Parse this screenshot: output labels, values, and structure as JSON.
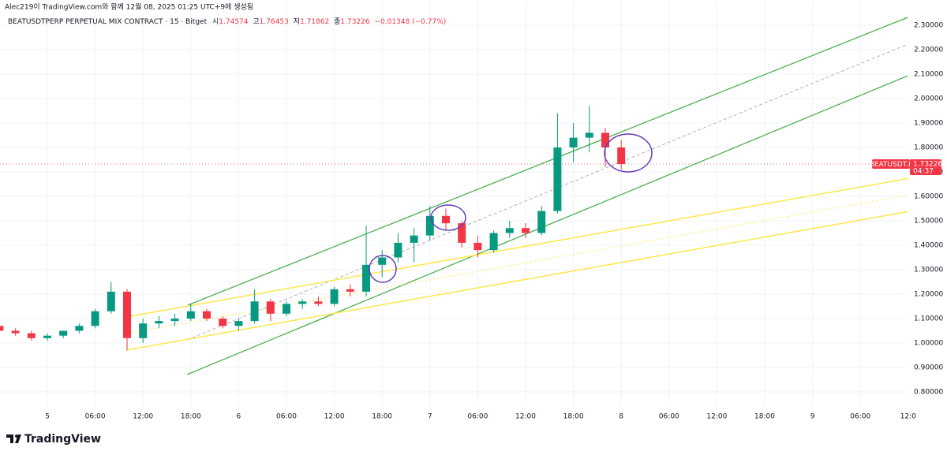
{
  "header": {
    "credit": "Alec219이 TradingView.com와 함께 12월 08, 2025 01:25 UTC+9에 생성됨",
    "symbol": "BEATUSDTPERP PERPETUAL MIX CONTRACT · 15 · Bitget",
    "open_label": "시",
    "open": 1.74574,
    "high_label": "고",
    "high": 1.76453,
    "low_label": "저",
    "low": 1.71862,
    "close_label": "종",
    "change": "−0.01348 (−0.77%)"
  },
  "price_tag": {
    "symbol": "BEATUSDT.P",
    "countdown": "04:37"
  },
  "brand": "TradingView",
  "chart_data": {
    "type": "candlestick",
    "x": [
      -6,
      -4,
      -2,
      0,
      2,
      4,
      6,
      8,
      10,
      12,
      14,
      16,
      18,
      20,
      22,
      24,
      26,
      28,
      30,
      32,
      34,
      36,
      38,
      40,
      42,
      44,
      46,
      48,
      50,
      52,
      54,
      56,
      58,
      60,
      62,
      64,
      66,
      68,
      70,
      72
    ],
    "open": [
      1.07,
      1.05,
      1.04,
      1.02,
      1.03,
      1.05,
      1.07,
      1.13,
      1.21,
      1.02,
      1.08,
      1.09,
      1.1,
      1.13,
      1.1,
      1.07,
      1.09,
      1.17,
      1.12,
      1.16,
      1.17,
      1.16,
      1.22,
      1.21,
      1.32,
      1.35,
      1.41,
      1.44,
      1.52,
      1.49,
      1.41,
      1.38,
      1.45,
      1.47,
      1.45,
      1.54,
      1.8,
      1.84,
      1.86,
      1.8
    ],
    "high": [
      1.08,
      1.06,
      1.05,
      1.04,
      1.05,
      1.08,
      1.14,
      1.25,
      1.22,
      1.1,
      1.11,
      1.12,
      1.16,
      1.14,
      1.11,
      1.1,
      1.22,
      1.18,
      1.17,
      1.18,
      1.19,
      1.23,
      1.24,
      1.48,
      1.38,
      1.45,
      1.47,
      1.56,
      1.55,
      1.5,
      1.44,
      1.46,
      1.5,
      1.49,
      1.56,
      1.94,
      1.9,
      1.97,
      1.88,
      1.83
    ],
    "low": [
      1.04,
      1.03,
      1.01,
      1.01,
      1.02,
      1.04,
      1.06,
      1.12,
      0.97,
      1.0,
      1.06,
      1.07,
      1.09,
      1.09,
      1.06,
      1.05,
      1.08,
      1.09,
      1.11,
      1.14,
      1.15,
      1.15,
      1.19,
      1.19,
      1.27,
      1.33,
      1.33,
      1.42,
      1.46,
      1.39,
      1.35,
      1.37,
      1.43,
      1.43,
      1.44,
      1.53,
      1.74,
      1.78,
      1.72,
      1.71
    ],
    "close": [
      1.05,
      1.04,
      1.02,
      1.03,
      1.05,
      1.07,
      1.13,
      1.21,
      1.02,
      1.08,
      1.09,
      1.1,
      1.13,
      1.1,
      1.07,
      1.09,
      1.17,
      1.12,
      1.16,
      1.17,
      1.16,
      1.22,
      1.21,
      1.32,
      1.35,
      1.41,
      1.44,
      1.52,
      1.49,
      1.41,
      1.38,
      1.45,
      1.47,
      1.45,
      1.54,
      1.8,
      1.84,
      1.86,
      1.8,
      1.73226
    ],
    "up_color": "#089981",
    "down_color": "#f23645",
    "xlim": [
      -5.94,
      107.92
    ],
    "xticks": [
      {
        "value": 0,
        "label": "5"
      },
      {
        "value": 6,
        "label": "06:00"
      },
      {
        "value": 12,
        "label": "12:00"
      },
      {
        "value": 18,
        "label": "18:00"
      },
      {
        "value": 24,
        "label": "6"
      },
      {
        "value": 30,
        "label": "06:00"
      },
      {
        "value": 36,
        "label": "12:00"
      },
      {
        "value": 42,
        "label": "18:00"
      },
      {
        "value": 48,
        "label": "7"
      },
      {
        "value": 54,
        "label": "06:00"
      },
      {
        "value": 60,
        "label": "12:00"
      },
      {
        "value": 66,
        "label": "18:00"
      },
      {
        "value": 72,
        "label": "8"
      },
      {
        "value": 78,
        "label": "06:00"
      },
      {
        "value": 84,
        "label": "12:00"
      },
      {
        "value": 90,
        "label": "18:00"
      },
      {
        "value": 96,
        "label": "9"
      },
      {
        "value": 102,
        "label": "06:00"
      },
      {
        "value": 108,
        "label": "12:0"
      }
    ],
    "ylim": [
      0.75,
      2.35
    ],
    "yticks": [
      {
        "value": 0.8,
        "label": "0.80000"
      },
      {
        "value": 0.9,
        "label": "0.90000"
      },
      {
        "value": 1.0,
        "label": "1.00000"
      },
      {
        "value": 1.1,
        "label": "1.10000"
      },
      {
        "value": 1.2,
        "label": "1.20000"
      },
      {
        "value": 1.3,
        "label": "1.30000"
      },
      {
        "value": 1.4,
        "label": "1.40000"
      },
      {
        "value": 1.5,
        "label": "1.50000"
      },
      {
        "value": 1.6,
        "label": "1.60000"
      },
      {
        "value": 1.7,
        "label": "1.70000"
      },
      {
        "value": 1.8,
        "label": "1.80000"
      },
      {
        "value": 1.9,
        "label": "1.90000"
      },
      {
        "value": 2.0,
        "label": "2.00000"
      },
      {
        "value": 2.1,
        "label": "2.10000"
      },
      {
        "value": 2.2,
        "label": "2.20000"
      },
      {
        "value": 2.3,
        "label": "2.30000"
      }
    ],
    "grid": true
  }
}
